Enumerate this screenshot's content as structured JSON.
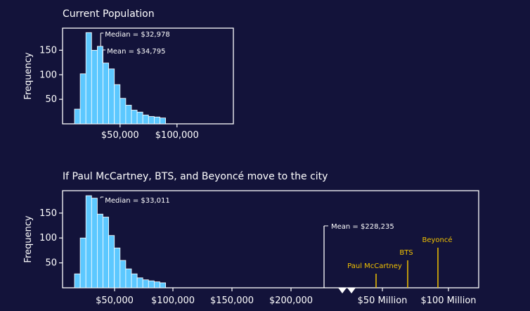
{
  "chart_data": [
    {
      "type": "histogram",
      "title": "Current Population",
      "ylabel": "Frequency",
      "ylim": [
        0,
        195
      ],
      "yticks": [
        "50",
        "100",
        "150"
      ],
      "ytick_values": [
        50,
        100,
        150
      ],
      "xlim": [
        0,
        150000
      ],
      "xticks": [
        "$50,000",
        "$100,000"
      ],
      "xtick_values": [
        50000,
        100000
      ],
      "bin_start": 10000,
      "bin_width": 5000,
      "bar_color": "#5cc8ff",
      "values": [
        30,
        102,
        186,
        150,
        158,
        124,
        112,
        80,
        52,
        38,
        28,
        24,
        18,
        15,
        14,
        12
      ],
      "annotations": [
        {
          "text": "Median = $32,978",
          "x": 32978
        },
        {
          "text": "Mean = $34,795",
          "x": 34795
        }
      ]
    },
    {
      "type": "histogram",
      "title": "If Paul McCartney, BTS, and Beyoncé move to the city",
      "ylabel": "Frequency",
      "ylim": [
        0,
        195
      ],
      "yticks": [
        "50",
        "100",
        "150"
      ],
      "ytick_values": [
        50,
        100,
        150
      ],
      "xticks": [
        "$50,000",
        "$100,000",
        "$150,000",
        "$200,000",
        "$50 Million",
        "$100 Million"
      ],
      "bin_start": 10000,
      "bin_width": 5000,
      "bar_color": "#5cc8ff",
      "values": [
        28,
        100,
        185,
        180,
        148,
        142,
        105,
        80,
        55,
        38,
        28,
        20,
        16,
        14,
        12,
        10
      ],
      "annotations": [
        {
          "text": "Median = $33,011",
          "x": 33011
        },
        {
          "text": "Mean = $228,235",
          "x": 228235
        }
      ],
      "celebrities": [
        {
          "name": "Paul McCartney",
          "value_label": "$50 Million"
        },
        {
          "name": "BTS",
          "value_label": "BTS"
        },
        {
          "name": "Beyoncé",
          "value_label": "$100 Million"
        }
      ],
      "highlight_color": "#f2c200"
    }
  ]
}
